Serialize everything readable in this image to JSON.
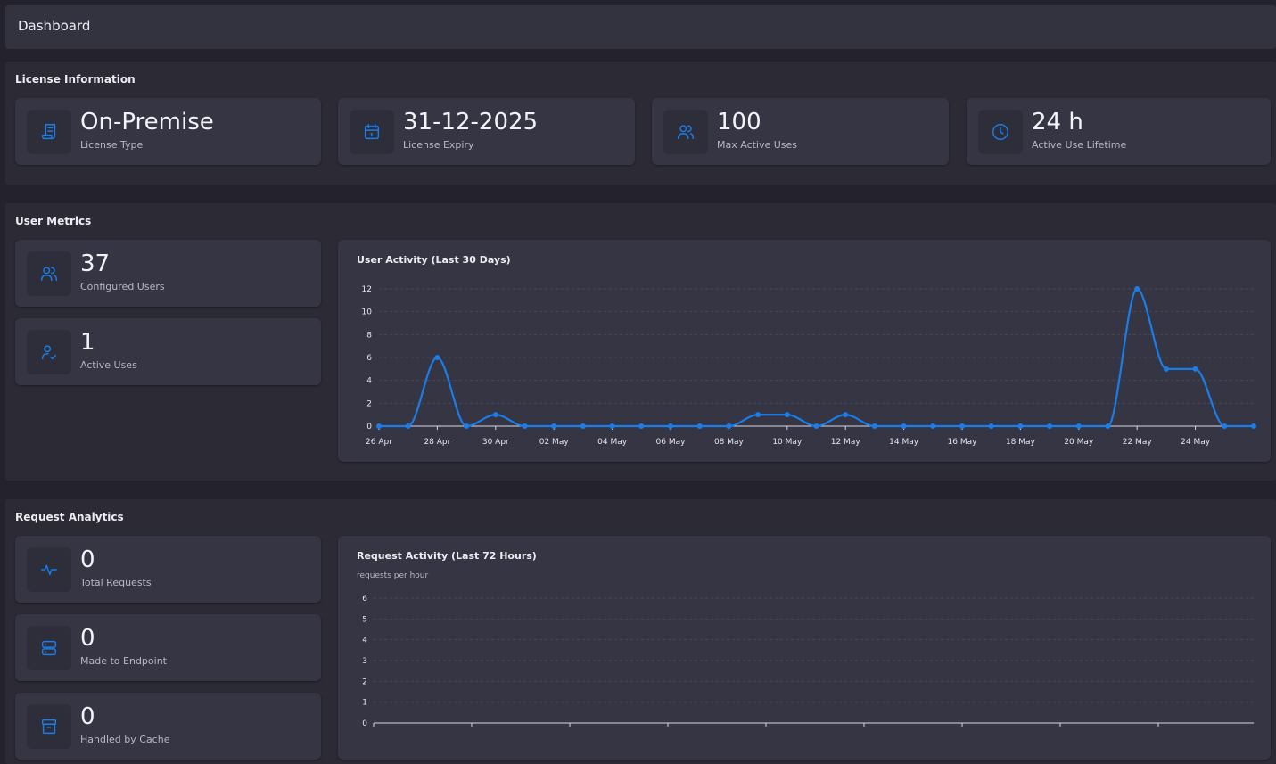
{
  "header": {
    "title": "Dashboard"
  },
  "license": {
    "title": "License Information",
    "cards": [
      {
        "value": "On-Premise",
        "label": "License Type",
        "icon": "license-scroll-icon"
      },
      {
        "value": "31-12-2025",
        "label": "License Expiry",
        "icon": "calendar-icon"
      },
      {
        "value": "100",
        "label": "Max Active Uses",
        "icon": "users-icon"
      },
      {
        "value": "24 h",
        "label": "Active Use Lifetime",
        "icon": "clock-icon"
      }
    ]
  },
  "user_metrics": {
    "title": "User Metrics",
    "cards": [
      {
        "value": "37",
        "label": "Configured Users",
        "icon": "users-icon"
      },
      {
        "value": "1",
        "label": "Active Uses",
        "icon": "user-check-icon"
      }
    ]
  },
  "request_analytics": {
    "title": "Request Analytics",
    "cards": [
      {
        "value": "0",
        "label": "Total Requests",
        "icon": "activity-pulse-icon"
      },
      {
        "value": "0",
        "label": "Made to Endpoint",
        "icon": "server-icon"
      },
      {
        "value": "0",
        "label": "Handled by Cache",
        "icon": "archive-box-icon"
      }
    ]
  },
  "colors": {
    "accent": "#1a7de8",
    "card": "#363544",
    "section": "#2b2a35"
  },
  "chart_data": [
    {
      "type": "line",
      "title": "User Activity (Last 30 Days)",
      "x": [
        "26 Apr",
        "27 Apr",
        "28 Apr",
        "29 Apr",
        "30 Apr",
        "01 May",
        "02 May",
        "03 May",
        "04 May",
        "05 May",
        "06 May",
        "07 May",
        "08 May",
        "09 May",
        "10 May",
        "11 May",
        "12 May",
        "13 May",
        "14 May",
        "15 May",
        "16 May",
        "17 May",
        "18 May",
        "19 May",
        "20 May",
        "21 May",
        "22 May",
        "23 May",
        "24 May",
        "25 May",
        "26 May"
      ],
      "tick_labels": [
        "26 Apr",
        "28 Apr",
        "30 Apr",
        "02 May",
        "04 May",
        "06 May",
        "08 May",
        "10 May",
        "12 May",
        "14 May",
        "16 May",
        "18 May",
        "20 May",
        "22 May",
        "24 May"
      ],
      "y_ticks": [
        0,
        2,
        4,
        6,
        8,
        10,
        12
      ],
      "values": [
        0,
        0,
        6,
        0,
        1,
        0,
        0,
        0,
        0,
        0,
        0,
        0,
        0,
        1,
        1,
        0,
        1,
        0,
        0,
        0,
        0,
        0,
        0,
        0,
        0,
        0,
        12,
        5,
        5,
        0,
        0
      ],
      "ylim": [
        0,
        12
      ],
      "grid": true,
      "color": "#1a7de8"
    },
    {
      "type": "line",
      "title": "Request Activity (Last 72 Hours)",
      "subtitle": "requests per hour",
      "y_ticks": [
        0,
        1,
        2,
        3,
        4,
        5,
        6
      ],
      "ylim": [
        0,
        6
      ],
      "values": [],
      "grid": true
    }
  ]
}
